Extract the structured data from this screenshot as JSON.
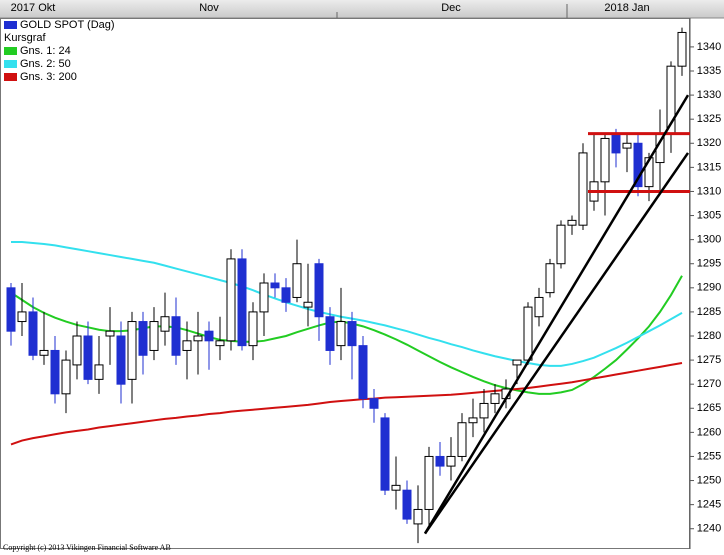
{
  "chart_data": {
    "type": "candlestick",
    "name": "GOLD SPOT (Dag)",
    "name_color": "#1f2fd1",
    "subtitle": "Kursgraf",
    "copyright": "Copyright (c) 2013 Vikingen Financial Software AB",
    "categories": [
      null,
      null,
      "2017 Okt",
      null,
      null,
      null,
      null,
      null,
      null,
      null,
      null,
      null,
      null,
      null,
      null,
      null,
      null,
      null,
      "Nov",
      null,
      null,
      null,
      null,
      null,
      null,
      null,
      null,
      null,
      null,
      null,
      null,
      null,
      null,
      null,
      null,
      null,
      null,
      null,
      null,
      null,
      "Dec",
      null,
      null,
      null,
      null,
      null,
      null,
      null,
      null,
      null,
      null,
      null,
      null,
      null,
      null,
      null,
      "2018 Jan",
      null,
      null,
      null,
      null,
      null
    ],
    "open": [
      1290,
      1283,
      1285,
      1276,
      1277,
      1268,
      1274,
      1280,
      1271,
      1280,
      1280,
      1271,
      1283,
      1277,
      1281,
      1284,
      1277,
      1279,
      1281,
      1278,
      1279,
      1296,
      1278,
      1285,
      1291,
      1290,
      1288,
      1286,
      1295,
      1284,
      1278,
      1283,
      1278,
      1267,
      1263,
      1248,
      1248,
      1241,
      1244,
      1255,
      1253,
      1255,
      1262,
      1263,
      1266,
      1267,
      1274,
      1275,
      1284,
      1289,
      1295,
      1303,
      1303,
      1308,
      1312,
      1322,
      1319,
      1320,
      1311,
      1316,
      1322,
      1336
    ],
    "high": [
      1291,
      1291,
      1288,
      1285,
      1280,
      1277,
      1283,
      1283,
      1280,
      1286,
      1283,
      1285,
      1285,
      1286,
      1289,
      1288,
      1283,
      1285,
      1283,
      1284,
      1298,
      1298,
      1287,
      1293,
      1293,
      1292,
      1300,
      1295,
      1296,
      1286,
      1290,
      1285,
      1280,
      1269,
      1264,
      1255,
      1250,
      1249,
      1257,
      1258,
      1259,
      1264,
      1267,
      1269,
      1270,
      1271,
      1275,
      1287,
      1290,
      1296,
      1304,
      1305,
      1320,
      1322,
      1322,
      1323,
      1322,
      1322,
      1318,
      1327,
      1337,
      1344
    ],
    "low": [
      1278,
      1280,
      1275,
      1274,
      1266,
      1264,
      1271,
      1270,
      1268,
      1274,
      1266,
      1266,
      1272,
      1275,
      1278,
      1274,
      1271,
      1272,
      1273,
      1275,
      1277,
      1277,
      1275,
      1280,
      1288,
      1285,
      1287,
      1282,
      1279,
      1274,
      1275,
      1271,
      1265,
      1262,
      1247,
      1244,
      1241,
      1237,
      1240,
      1251,
      1250,
      1254,
      1259,
      1260,
      1264,
      1265,
      1270,
      1274,
      1282,
      1288,
      1294,
      1301,
      1302,
      1306,
      1305,
      1315,
      1314,
      1309,
      1308,
      1310,
      1318,
      1334
    ],
    "close": [
      1281,
      1285,
      1276,
      1277,
      1268,
      1275,
      1280,
      1271,
      1274,
      1281,
      1270,
      1283,
      1276,
      1283,
      1284,
      1276,
      1279,
      1280,
      1279,
      1279,
      1296,
      1278,
      1285,
      1291,
      1290,
      1287,
      1295,
      1287,
      1284,
      1277,
      1283,
      1278,
      1267,
      1265,
      1248,
      1249,
      1242,
      1244,
      1255,
      1253,
      1255,
      1262,
      1263,
      1266,
      1268,
      1269,
      1275,
      1286,
      1288,
      1295,
      1303,
      1304,
      1318,
      1312,
      1321,
      1318,
      1320,
      1311,
      1317,
      1322,
      1336,
      1343
    ],
    "up_color": "#ffffff",
    "down_color": "#1f2fd1",
    "series": [
      {
        "name": "Gns. 1: 24",
        "color": "#22cc22",
        "values": [
          1289,
          1287.5,
          1286,
          1284.8,
          1283.8,
          1283,
          1282.3,
          1281.8,
          1281.3,
          1281,
          1281,
          1281.2,
          1281.6,
          1282,
          1282,
          1281.8,
          1281.2,
          1280.5,
          1279.8,
          1279.2,
          1279,
          1278.8,
          1278.8,
          1279,
          1279.5,
          1280,
          1280.8,
          1281.5,
          1282.2,
          1282.8,
          1283,
          1282.6,
          1282,
          1281.2,
          1280.3,
          1279.3,
          1278.2,
          1277,
          1275.8,
          1274.6,
          1273.5,
          1272.5,
          1271.5,
          1270.6,
          1269.8,
          1269.2,
          1268.7,
          1268.3,
          1268,
          1268,
          1268.3,
          1268.8,
          1270,
          1271.5,
          1273.2,
          1275,
          1277.2,
          1279.5,
          1282,
          1285,
          1288.5,
          1292.5
        ]
      },
      {
        "name": "Gns. 2: 50",
        "color": "#33e0ee",
        "values": [
          1299.5,
          1299.5,
          1299.3,
          1299.1,
          1298.8,
          1298.4,
          1298,
          1297.6,
          1297.2,
          1296.8,
          1296.4,
          1296,
          1295.6,
          1295.2,
          1294.6,
          1294,
          1293.4,
          1292.8,
          1292.2,
          1291.6,
          1291,
          1290.3,
          1289.5,
          1288.6,
          1287.8,
          1287,
          1286.3,
          1285.6,
          1285,
          1284.5,
          1284,
          1283.6,
          1283.2,
          1282.7,
          1282.2,
          1281.6,
          1281,
          1280.3,
          1279.6,
          1279,
          1278.3,
          1277.7,
          1277,
          1276.4,
          1275.8,
          1275.3,
          1274.8,
          1274.4,
          1274,
          1273.8,
          1273.8,
          1274.2,
          1274.8,
          1275.5,
          1276.5,
          1277.5,
          1278.6,
          1279.8,
          1281,
          1282.2,
          1283.5,
          1284.8
        ]
      },
      {
        "name": "Gns. 3: 200",
        "color": "#d01010",
        "values": [
          1257.5,
          1258.3,
          1258.8,
          1259.2,
          1259.6,
          1260,
          1260.3,
          1260.6,
          1261,
          1261.3,
          1261.6,
          1261.9,
          1262.2,
          1262.5,
          1262.8,
          1263,
          1263.3,
          1263.5,
          1263.8,
          1264,
          1264.3,
          1264.5,
          1264.7,
          1264.9,
          1265.1,
          1265.3,
          1265.5,
          1265.7,
          1266,
          1266.3,
          1266.5,
          1266.7,
          1266.9,
          1267,
          1267.2,
          1267.3,
          1267.4,
          1267.5,
          1267.6,
          1267.7,
          1267.8,
          1268,
          1268.2,
          1268.4,
          1268.6,
          1268.8,
          1269,
          1269.2,
          1269.5,
          1269.8,
          1270.1,
          1270.4,
          1270.8,
          1271.2,
          1271.6,
          1272,
          1272.4,
          1272.8,
          1273.2,
          1273.6,
          1274,
          1274.4
        ]
      }
    ],
    "hlines": {
      "color": "#d01010",
      "values": [
        1322,
        1310
      ]
    },
    "trendlines": {
      "color": "#000000",
      "values": [
        [
          1239,
          1330
        ],
        [
          1239,
          1318
        ]
      ]
    },
    "ylim": [
      1236,
      1346
    ],
    "yticks": [
      1240,
      1245,
      1250,
      1255,
      1260,
      1265,
      1270,
      1275,
      1280,
      1285,
      1290,
      1295,
      1300,
      1305,
      1310,
      1315,
      1320,
      1325,
      1330,
      1335,
      1340
    ]
  }
}
